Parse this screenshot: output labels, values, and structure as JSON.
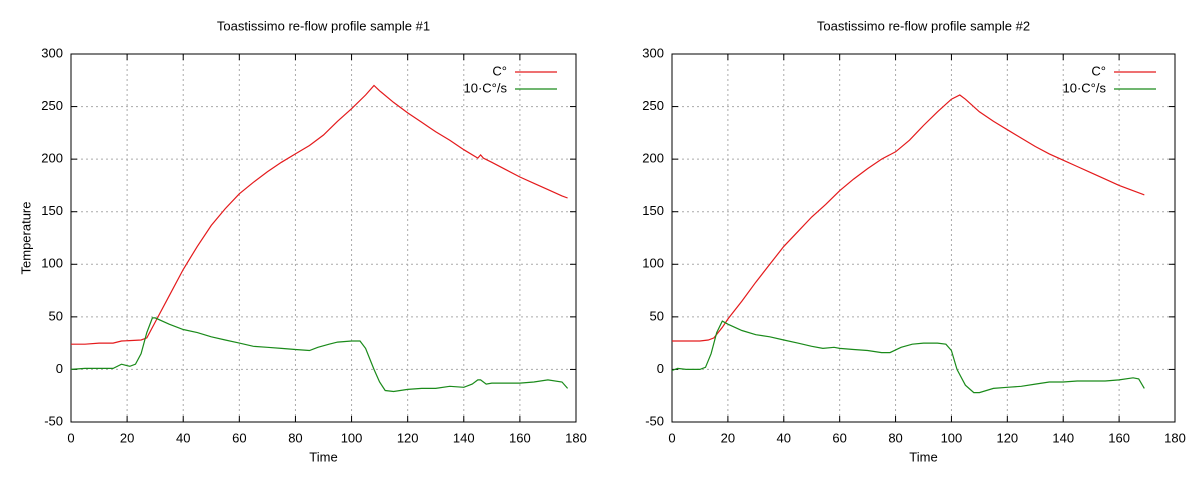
{
  "chart_data": [
    {
      "type": "line",
      "title": "Toastissimo re-flow profile sample #1",
      "xlabel": "Time",
      "ylabel": "Temperature",
      "xlim": [
        0,
        180
      ],
      "xticks": [
        0,
        20,
        40,
        60,
        80,
        100,
        120,
        140,
        160,
        180
      ],
      "ylim": [
        -50,
        300
      ],
      "yticks": [
        -50,
        0,
        50,
        100,
        150,
        200,
        250,
        300
      ],
      "grid": true,
      "legend": "top-right",
      "series": [
        {
          "name": "C°",
          "color": "#e41a1c",
          "x": [
            0,
            5,
            10,
            15,
            18,
            25,
            27,
            30,
            35,
            40,
            45,
            50,
            55,
            60,
            65,
            70,
            75,
            80,
            85,
            90,
            95,
            100,
            105,
            108,
            110,
            115,
            120,
            125,
            130,
            135,
            140,
            145,
            146,
            147,
            150,
            155,
            160,
            165,
            170,
            175,
            177
          ],
          "values": [
            24,
            24,
            25,
            25,
            27,
            28,
            30,
            45,
            70,
            95,
            117,
            137,
            153,
            167,
            178,
            188,
            197,
            205,
            213,
            223,
            236,
            248,
            261,
            270,
            265,
            254,
            244,
            235,
            226,
            218,
            209,
            201,
            204,
            201,
            197,
            190,
            183,
            177,
            171,
            165,
            163
          ]
        },
        {
          "name": "10·C°/s",
          "color": "#1a8a1a",
          "x": [
            0,
            5,
            10,
            15,
            18,
            21,
            23,
            25,
            27,
            29,
            30,
            35,
            40,
            45,
            50,
            55,
            60,
            65,
            70,
            75,
            80,
            85,
            88,
            92,
            95,
            100,
            103,
            105,
            108,
            110,
            112,
            115,
            120,
            125,
            130,
            135,
            140,
            143,
            145,
            146,
            148,
            150,
            155,
            160,
            165,
            170,
            175,
            177
          ],
          "values": [
            0,
            1,
            1,
            1,
            5,
            3,
            5,
            15,
            35,
            49,
            49,
            43,
            38,
            35,
            31,
            28,
            25,
            22,
            21,
            20,
            19,
            18,
            21,
            24,
            26,
            27,
            27,
            20,
            0,
            -12,
            -20,
            -21,
            -19,
            -18,
            -18,
            -16,
            -17,
            -14,
            -10,
            -10,
            -14,
            -13,
            -13,
            -13,
            -12,
            -10,
            -12,
            -18
          ]
        }
      ]
    },
    {
      "type": "line",
      "title": "Toastissimo re-flow profile sample #2",
      "xlabel": "Time",
      "xlim": [
        0,
        180
      ],
      "xticks": [
        0,
        20,
        40,
        60,
        80,
        100,
        120,
        140,
        160,
        180
      ],
      "ylim": [
        -50,
        300
      ],
      "yticks": [
        -50,
        0,
        50,
        100,
        150,
        200,
        250,
        300
      ],
      "grid": true,
      "legend": "top-right",
      "series": [
        {
          "name": "C°",
          "color": "#e41a1c",
          "x": [
            0,
            5,
            10,
            13,
            15,
            18,
            20,
            25,
            30,
            35,
            40,
            45,
            50,
            55,
            60,
            65,
            70,
            75,
            80,
            85,
            90,
            95,
            100,
            103,
            105,
            110,
            115,
            120,
            125,
            130,
            135,
            140,
            145,
            150,
            155,
            160,
            165,
            169
          ],
          "values": [
            27,
            27,
            27,
            28,
            30,
            40,
            48,
            65,
            83,
            100,
            117,
            131,
            145,
            157,
            170,
            181,
            191,
            200,
            207,
            218,
            232,
            245,
            257,
            261,
            257,
            245,
            236,
            228,
            220,
            212,
            205,
            199,
            193,
            187,
            181,
            175,
            170,
            166
          ]
        },
        {
          "name": "10·C°/s",
          "color": "#1a8a1a",
          "x": [
            0,
            2,
            5,
            10,
            12,
            14,
            16,
            18,
            20,
            25,
            30,
            35,
            40,
            45,
            50,
            54,
            58,
            60,
            65,
            70,
            75,
            78,
            82,
            86,
            90,
            95,
            98,
            100,
            102,
            105,
            108,
            110,
            115,
            120,
            125,
            130,
            135,
            140,
            145,
            150,
            155,
            160,
            165,
            167,
            169
          ],
          "values": [
            -1,
            1,
            0,
            0,
            2,
            15,
            35,
            46,
            43,
            37,
            33,
            31,
            28,
            25,
            22,
            20,
            21,
            20,
            19,
            18,
            16,
            16,
            21,
            24,
            25,
            25,
            24,
            18,
            0,
            -15,
            -22,
            -22,
            -18,
            -17,
            -16,
            -14,
            -12,
            -12,
            -11,
            -11,
            -11,
            -10,
            -8,
            -9,
            -18
          ]
        }
      ]
    }
  ]
}
